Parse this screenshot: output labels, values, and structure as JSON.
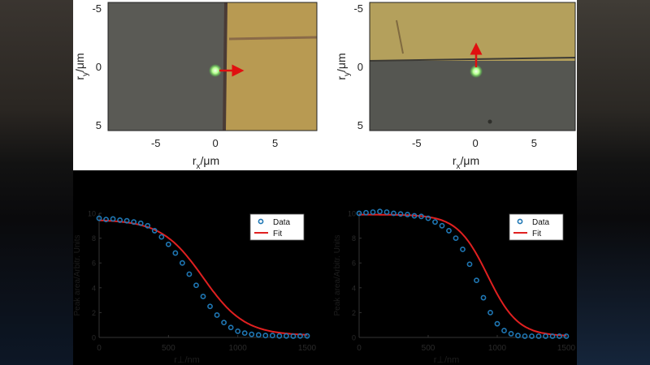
{
  "chart_data": [
    {
      "type": "image",
      "panel": "top-left",
      "xlabel_main": "r",
      "xlabel_sub": "x",
      "xlabel_unit": "/μm",
      "ylabel_main": "r",
      "ylabel_sub": "y",
      "ylabel_unit": "/μm",
      "xticks": [
        "-5",
        "0",
        "5"
      ],
      "yticks": [
        "-5",
        "0",
        "5"
      ],
      "xlim": [
        -9,
        8.5
      ],
      "ylim": [
        -5.5,
        5.5
      ],
      "arrow_direction": "right"
    },
    {
      "type": "image",
      "panel": "top-right",
      "xlabel_main": "r",
      "xlabel_sub": "x",
      "xlabel_unit": "/μm",
      "ylabel_main": "r",
      "ylabel_sub": "y",
      "ylabel_unit": "/μm",
      "xticks": [
        "-5",
        "0",
        "5"
      ],
      "yticks": [
        "-5",
        "0",
        "5"
      ],
      "xlim": [
        -9,
        8.5
      ],
      "ylim": [
        -5.5,
        5.5
      ],
      "arrow_direction": "up"
    },
    {
      "type": "scatter+line",
      "panel": "bottom-left",
      "xlabel": "r⊥/nm",
      "ylabel": "Peak area/Arbitr. Units",
      "xlim": [
        0,
        1500
      ],
      "ylim": [
        0,
        10
      ],
      "xticks": [
        "0",
        "500",
        "1000",
        "1500"
      ],
      "yticks": [
        "0",
        "2",
        "4",
        "6",
        "8",
        "10"
      ],
      "legend": [
        "Data",
        "Fit"
      ],
      "fit": {
        "high": 9.5,
        "low": 0.15,
        "center": 750,
        "width": 150
      },
      "data_x": [
        0,
        50,
        100,
        150,
        200,
        250,
        300,
        350,
        400,
        450,
        500,
        550,
        600,
        650,
        700,
        750,
        800,
        850,
        900,
        950,
        1000,
        1050,
        1100,
        1150,
        1200,
        1250,
        1300,
        1350,
        1400,
        1450,
        1500
      ],
      "data_y": [
        9.6,
        9.5,
        9.55,
        9.45,
        9.4,
        9.3,
        9.2,
        9.0,
        8.6,
        8.1,
        7.5,
        6.8,
        6.0,
        5.1,
        4.2,
        3.3,
        2.5,
        1.8,
        1.2,
        0.8,
        0.5,
        0.35,
        0.25,
        0.2,
        0.15,
        0.15,
        0.12,
        0.12,
        0.1,
        0.12,
        0.12
      ]
    },
    {
      "type": "scatter+line",
      "panel": "bottom-right",
      "xlabel": "r⊥/nm",
      "ylabel": "Peak area/Arbitr. Units",
      "xlim": [
        0,
        1500
      ],
      "ylim": [
        0,
        10
      ],
      "xticks": [
        "0",
        "500",
        "1000",
        "1500"
      ],
      "yticks": [
        "0",
        "2",
        "4",
        "6",
        "8",
        "10"
      ],
      "legend": [
        "Data",
        "Fit"
      ],
      "fit": {
        "high": 9.9,
        "low": 0.1,
        "center": 930,
        "width": 110
      },
      "data_x": [
        0,
        50,
        100,
        150,
        200,
        250,
        300,
        350,
        400,
        450,
        500,
        550,
        600,
        650,
        700,
        750,
        800,
        850,
        900,
        950,
        1000,
        1050,
        1100,
        1150,
        1200,
        1250,
        1300,
        1350,
        1400,
        1450,
        1500
      ],
      "data_y": [
        10.0,
        10.05,
        10.1,
        10.15,
        10.1,
        10.0,
        9.95,
        9.9,
        9.8,
        9.75,
        9.6,
        9.3,
        9.0,
        8.6,
        8.0,
        7.1,
        5.9,
        4.6,
        3.2,
        2.0,
        1.1,
        0.55,
        0.3,
        0.15,
        0.1,
        0.1,
        0.1,
        0.1,
        0.1,
        0.1,
        0.1
      ]
    }
  ],
  "legend_labels": {
    "data": "Data",
    "fit": "Fit"
  },
  "colors": {
    "data_marker": "#1f77b4",
    "fit_line": "#e02020",
    "arrow": "#e01010",
    "gold": "#b89a52",
    "gray": "#5a5a55"
  }
}
